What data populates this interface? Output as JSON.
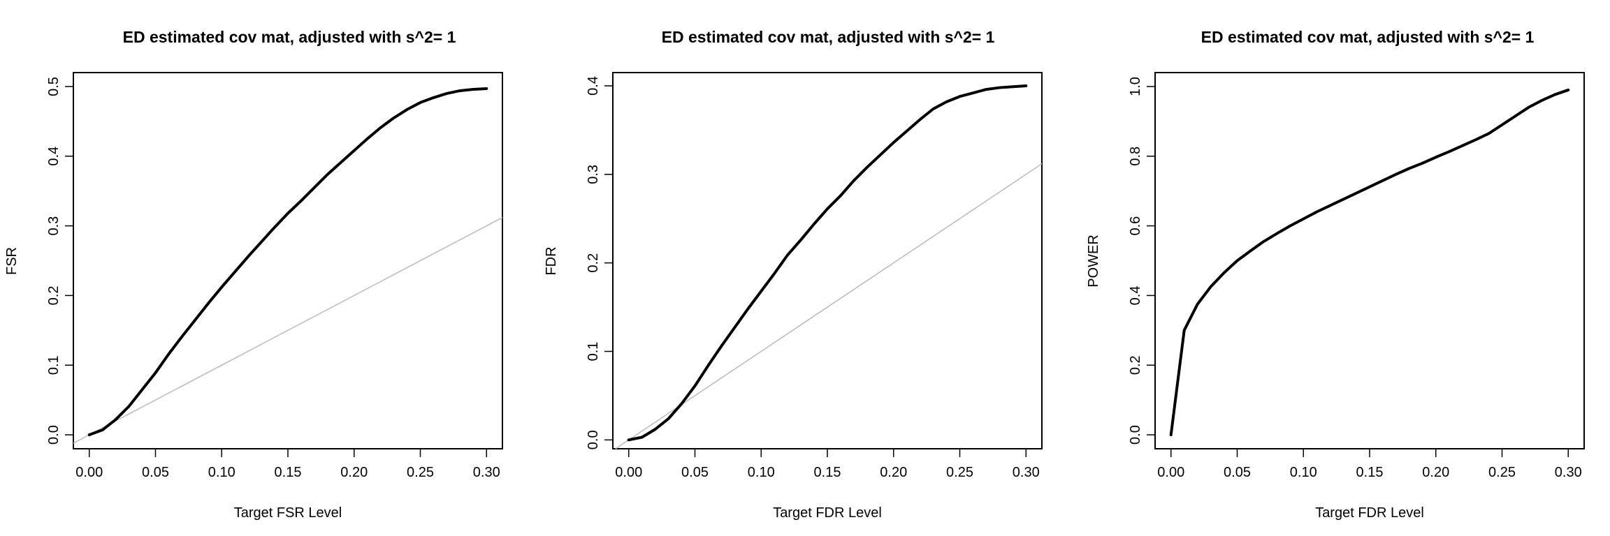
{
  "chart_data": [
    {
      "type": "line",
      "title": "ED estimated cov mat, adjusted with s^2= 1",
      "xlabel": "Target FSR Level",
      "ylabel": "FSR",
      "xlim": [
        -0.012,
        0.312
      ],
      "ylim": [
        -0.02,
        0.52
      ],
      "xticks": [
        "0.00",
        "0.05",
        "0.10",
        "0.15",
        "0.20",
        "0.25",
        "0.30"
      ],
      "yticks": [
        "0.0",
        "0.1",
        "0.2",
        "0.3",
        "0.4",
        "0.5"
      ],
      "grid": false,
      "reference_line": {
        "color": "#bebebe",
        "slope": 1,
        "intercept": 0
      },
      "series": [
        {
          "color": "#000000",
          "x": [
            0.0,
            0.01,
            0.02,
            0.03,
            0.04,
            0.05,
            0.06,
            0.07,
            0.08,
            0.09,
            0.1,
            0.11,
            0.12,
            0.13,
            0.14,
            0.15,
            0.16,
            0.17,
            0.18,
            0.19,
            0.2,
            0.21,
            0.22,
            0.23,
            0.24,
            0.25,
            0.26,
            0.27,
            0.28,
            0.29,
            0.3
          ],
          "y": [
            0.0,
            0.007,
            0.022,
            0.041,
            0.065,
            0.089,
            0.116,
            0.141,
            0.165,
            0.189,
            0.212,
            0.234,
            0.256,
            0.277,
            0.298,
            0.318,
            0.336,
            0.355,
            0.374,
            0.391,
            0.408,
            0.425,
            0.441,
            0.455,
            0.467,
            0.477,
            0.484,
            0.49,
            0.494,
            0.496,
            0.497
          ]
        }
      ]
    },
    {
      "type": "line",
      "title": "ED estimated cov mat, adjusted with s^2= 1",
      "xlabel": "Target FDR Level",
      "ylabel": "FDR",
      "xlim": [
        -0.012,
        0.312
      ],
      "ylim": [
        -0.01,
        0.415
      ],
      "xticks": [
        "0.00",
        "0.05",
        "0.10",
        "0.15",
        "0.20",
        "0.25",
        "0.30"
      ],
      "yticks": [
        "0.0",
        "0.1",
        "0.2",
        "0.3",
        "0.4"
      ],
      "grid": false,
      "reference_line": {
        "color": "#bebebe",
        "slope": 1,
        "intercept": 0
      },
      "series": [
        {
          "color": "#000000",
          "x": [
            0.0,
            0.01,
            0.02,
            0.03,
            0.04,
            0.05,
            0.06,
            0.07,
            0.08,
            0.09,
            0.1,
            0.11,
            0.12,
            0.13,
            0.14,
            0.15,
            0.16,
            0.17,
            0.18,
            0.19,
            0.2,
            0.21,
            0.22,
            0.23,
            0.24,
            0.25,
            0.26,
            0.27,
            0.28,
            0.29,
            0.3
          ],
          "y": [
            0.0,
            0.003,
            0.012,
            0.024,
            0.041,
            0.061,
            0.084,
            0.106,
            0.127,
            0.148,
            0.168,
            0.188,
            0.209,
            0.226,
            0.244,
            0.261,
            0.276,
            0.293,
            0.308,
            0.322,
            0.336,
            0.349,
            0.362,
            0.374,
            0.382,
            0.388,
            0.392,
            0.396,
            0.398,
            0.399,
            0.4
          ]
        }
      ]
    },
    {
      "type": "line",
      "title": "ED estimated cov mat, adjusted with s^2= 1",
      "xlabel": "Target FDR Level",
      "ylabel": "POWER",
      "xlim": [
        -0.012,
        0.312
      ],
      "ylim": [
        -0.04,
        1.04
      ],
      "xticks": [
        "0.00",
        "0.05",
        "0.10",
        "0.15",
        "0.20",
        "0.25",
        "0.30"
      ],
      "yticks": [
        "0.0",
        "0.2",
        "0.4",
        "0.6",
        "0.8",
        "1.0"
      ],
      "grid": false,
      "series": [
        {
          "color": "#000000",
          "x": [
            0.0,
            0.01,
            0.02,
            0.03,
            0.04,
            0.05,
            0.06,
            0.07,
            0.08,
            0.09,
            0.1,
            0.11,
            0.12,
            0.13,
            0.14,
            0.15,
            0.16,
            0.17,
            0.18,
            0.19,
            0.2,
            0.21,
            0.22,
            0.23,
            0.24,
            0.25,
            0.26,
            0.27,
            0.28,
            0.29,
            0.3
          ],
          "y": [
            0.0,
            0.3,
            0.375,
            0.425,
            0.465,
            0.5,
            0.528,
            0.555,
            0.578,
            0.6,
            0.62,
            0.64,
            0.658,
            0.676,
            0.694,
            0.712,
            0.73,
            0.748,
            0.765,
            0.78,
            0.797,
            0.813,
            0.83,
            0.847,
            0.865,
            0.89,
            0.915,
            0.94,
            0.96,
            0.977,
            0.99
          ]
        }
      ]
    }
  ]
}
